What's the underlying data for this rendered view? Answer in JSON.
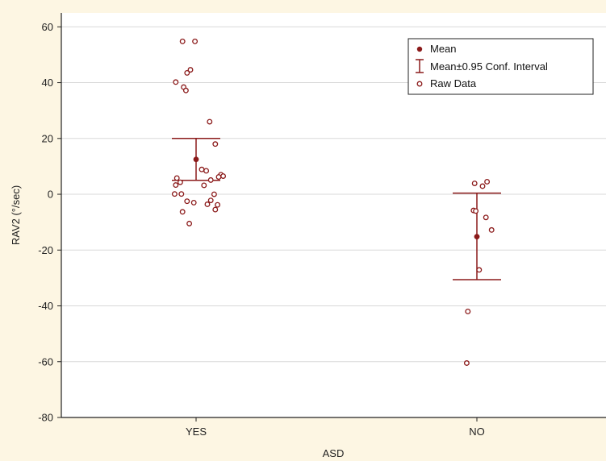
{
  "chart_data": {
    "type": "scatter",
    "title": "",
    "xlabel": "ASD",
    "ylabel": "RAV2 (°/sec)",
    "ylim": [
      -80,
      65
    ],
    "yticks": [
      60,
      40,
      20,
      0,
      -20,
      -40,
      -60,
      -80
    ],
    "categories": [
      "YES",
      "NO"
    ],
    "grid": true,
    "legend_position": "top-right",
    "legend": {
      "mean": "Mean",
      "ci": "Mean±0.95 Conf. Interval",
      "raw": "Raw Data"
    },
    "colors": {
      "series": "#8b1a1a",
      "grid": "#d8d8d8",
      "background": "#fdf6e3",
      "plot_background": "#ffffff"
    },
    "groups": [
      {
        "category": "YES",
        "mean": 12.5,
        "ci_low": 5.0,
        "ci_high": 20.0,
        "raw": [
          {
            "x": -0.06,
            "y": 54.8
          },
          {
            "x": -0.005,
            "y": 54.8
          },
          {
            "x": -0.025,
            "y": 44.6
          },
          {
            "x": -0.09,
            "y": 40.2
          },
          {
            "x": -0.055,
            "y": 38.4
          },
          {
            "x": -0.045,
            "y": 37.2
          },
          {
            "x": -0.04,
            "y": 43.5
          },
          {
            "x": 0.06,
            "y": 26.0
          },
          {
            "x": 0.085,
            "y": 18.0
          },
          {
            "x": 0.025,
            "y": 8.9
          },
          {
            "x": 0.045,
            "y": 8.4
          },
          {
            "x": 0.11,
            "y": 7.0
          },
          {
            "x": 0.1,
            "y": 6.2
          },
          {
            "x": -0.085,
            "y": 5.8
          },
          {
            "x": -0.07,
            "y": 4.3
          },
          {
            "x": 0.065,
            "y": 5.1
          },
          {
            "x": 0.12,
            "y": 6.5
          },
          {
            "x": 0.035,
            "y": 3.2
          },
          {
            "x": -0.09,
            "y": 3.3
          },
          {
            "x": -0.095,
            "y": 0.1
          },
          {
            "x": -0.065,
            "y": 0.1
          },
          {
            "x": 0.08,
            "y": 0.0
          },
          {
            "x": 0.065,
            "y": -2.2
          },
          {
            "x": -0.04,
            "y": -2.5
          },
          {
            "x": -0.01,
            "y": -3.0
          },
          {
            "x": 0.05,
            "y": -3.6
          },
          {
            "x": 0.095,
            "y": -3.8
          },
          {
            "x": 0.085,
            "y": -5.5
          },
          {
            "x": -0.06,
            "y": -6.3
          },
          {
            "x": -0.03,
            "y": -10.5
          }
        ]
      },
      {
        "category": "NO",
        "mean": -15.2,
        "ci_low": -30.6,
        "ci_high": 0.4,
        "raw": [
          {
            "x": -0.01,
            "y": 3.9
          },
          {
            "x": 0.025,
            "y": 2.9
          },
          {
            "x": 0.045,
            "y": 4.5
          },
          {
            "x": -0.015,
            "y": -5.8
          },
          {
            "x": -0.005,
            "y": -6.0
          },
          {
            "x": 0.04,
            "y": -8.3
          },
          {
            "x": 0.065,
            "y": -12.8
          },
          {
            "x": 0.01,
            "y": -27.1
          },
          {
            "x": -0.04,
            "y": -42.0
          },
          {
            "x": -0.045,
            "y": -60.5
          }
        ]
      }
    ]
  }
}
